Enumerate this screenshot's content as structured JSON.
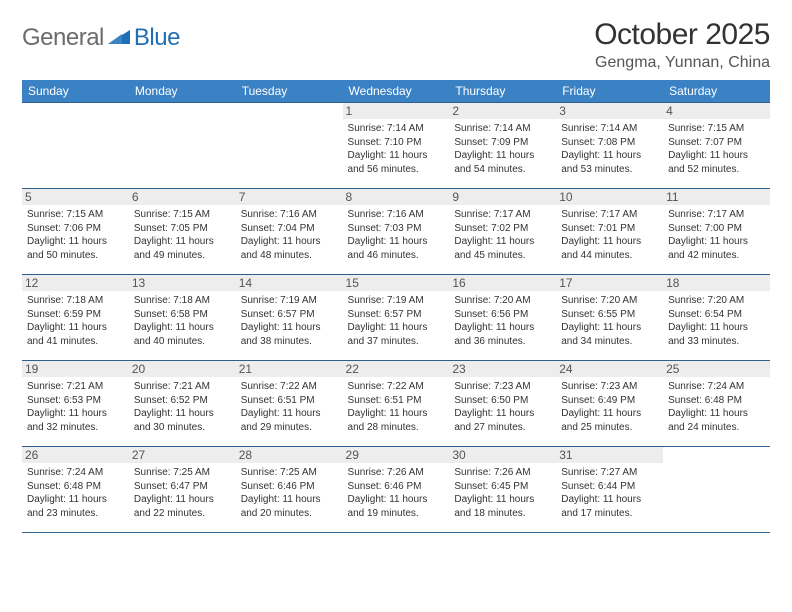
{
  "brand": {
    "general": "General",
    "blue": "Blue"
  },
  "title": "October 2025",
  "location": "Gengma, Yunnan, China",
  "colors": {
    "header_bg": "#3b82c4",
    "header_text": "#ffffff",
    "row_border": "#2f5f8f",
    "daynum_bg": "#ededed",
    "daynum_text": "#555555",
    "body_text": "#333333",
    "logo_gray": "#6b6b6b",
    "logo_blue": "#1f6fb2"
  },
  "days_of_week": [
    "Sunday",
    "Monday",
    "Tuesday",
    "Wednesday",
    "Thursday",
    "Friday",
    "Saturday"
  ],
  "weeks": [
    [
      null,
      null,
      null,
      {
        "n": "1",
        "sr": "Sunrise: 7:14 AM",
        "ss": "Sunset: 7:10 PM",
        "dl1": "Daylight: 11 hours",
        "dl2": "and 56 minutes."
      },
      {
        "n": "2",
        "sr": "Sunrise: 7:14 AM",
        "ss": "Sunset: 7:09 PM",
        "dl1": "Daylight: 11 hours",
        "dl2": "and 54 minutes."
      },
      {
        "n": "3",
        "sr": "Sunrise: 7:14 AM",
        "ss": "Sunset: 7:08 PM",
        "dl1": "Daylight: 11 hours",
        "dl2": "and 53 minutes."
      },
      {
        "n": "4",
        "sr": "Sunrise: 7:15 AM",
        "ss": "Sunset: 7:07 PM",
        "dl1": "Daylight: 11 hours",
        "dl2": "and 52 minutes."
      }
    ],
    [
      {
        "n": "5",
        "sr": "Sunrise: 7:15 AM",
        "ss": "Sunset: 7:06 PM",
        "dl1": "Daylight: 11 hours",
        "dl2": "and 50 minutes."
      },
      {
        "n": "6",
        "sr": "Sunrise: 7:15 AM",
        "ss": "Sunset: 7:05 PM",
        "dl1": "Daylight: 11 hours",
        "dl2": "and 49 minutes."
      },
      {
        "n": "7",
        "sr": "Sunrise: 7:16 AM",
        "ss": "Sunset: 7:04 PM",
        "dl1": "Daylight: 11 hours",
        "dl2": "and 48 minutes."
      },
      {
        "n": "8",
        "sr": "Sunrise: 7:16 AM",
        "ss": "Sunset: 7:03 PM",
        "dl1": "Daylight: 11 hours",
        "dl2": "and 46 minutes."
      },
      {
        "n": "9",
        "sr": "Sunrise: 7:17 AM",
        "ss": "Sunset: 7:02 PM",
        "dl1": "Daylight: 11 hours",
        "dl2": "and 45 minutes."
      },
      {
        "n": "10",
        "sr": "Sunrise: 7:17 AM",
        "ss": "Sunset: 7:01 PM",
        "dl1": "Daylight: 11 hours",
        "dl2": "and 44 minutes."
      },
      {
        "n": "11",
        "sr": "Sunrise: 7:17 AM",
        "ss": "Sunset: 7:00 PM",
        "dl1": "Daylight: 11 hours",
        "dl2": "and 42 minutes."
      }
    ],
    [
      {
        "n": "12",
        "sr": "Sunrise: 7:18 AM",
        "ss": "Sunset: 6:59 PM",
        "dl1": "Daylight: 11 hours",
        "dl2": "and 41 minutes."
      },
      {
        "n": "13",
        "sr": "Sunrise: 7:18 AM",
        "ss": "Sunset: 6:58 PM",
        "dl1": "Daylight: 11 hours",
        "dl2": "and 40 minutes."
      },
      {
        "n": "14",
        "sr": "Sunrise: 7:19 AM",
        "ss": "Sunset: 6:57 PM",
        "dl1": "Daylight: 11 hours",
        "dl2": "and 38 minutes."
      },
      {
        "n": "15",
        "sr": "Sunrise: 7:19 AM",
        "ss": "Sunset: 6:57 PM",
        "dl1": "Daylight: 11 hours",
        "dl2": "and 37 minutes."
      },
      {
        "n": "16",
        "sr": "Sunrise: 7:20 AM",
        "ss": "Sunset: 6:56 PM",
        "dl1": "Daylight: 11 hours",
        "dl2": "and 36 minutes."
      },
      {
        "n": "17",
        "sr": "Sunrise: 7:20 AM",
        "ss": "Sunset: 6:55 PM",
        "dl1": "Daylight: 11 hours",
        "dl2": "and 34 minutes."
      },
      {
        "n": "18",
        "sr": "Sunrise: 7:20 AM",
        "ss": "Sunset: 6:54 PM",
        "dl1": "Daylight: 11 hours",
        "dl2": "and 33 minutes."
      }
    ],
    [
      {
        "n": "19",
        "sr": "Sunrise: 7:21 AM",
        "ss": "Sunset: 6:53 PM",
        "dl1": "Daylight: 11 hours",
        "dl2": "and 32 minutes."
      },
      {
        "n": "20",
        "sr": "Sunrise: 7:21 AM",
        "ss": "Sunset: 6:52 PM",
        "dl1": "Daylight: 11 hours",
        "dl2": "and 30 minutes."
      },
      {
        "n": "21",
        "sr": "Sunrise: 7:22 AM",
        "ss": "Sunset: 6:51 PM",
        "dl1": "Daylight: 11 hours",
        "dl2": "and 29 minutes."
      },
      {
        "n": "22",
        "sr": "Sunrise: 7:22 AM",
        "ss": "Sunset: 6:51 PM",
        "dl1": "Daylight: 11 hours",
        "dl2": "and 28 minutes."
      },
      {
        "n": "23",
        "sr": "Sunrise: 7:23 AM",
        "ss": "Sunset: 6:50 PM",
        "dl1": "Daylight: 11 hours",
        "dl2": "and 27 minutes."
      },
      {
        "n": "24",
        "sr": "Sunrise: 7:23 AM",
        "ss": "Sunset: 6:49 PM",
        "dl1": "Daylight: 11 hours",
        "dl2": "and 25 minutes."
      },
      {
        "n": "25",
        "sr": "Sunrise: 7:24 AM",
        "ss": "Sunset: 6:48 PM",
        "dl1": "Daylight: 11 hours",
        "dl2": "and 24 minutes."
      }
    ],
    [
      {
        "n": "26",
        "sr": "Sunrise: 7:24 AM",
        "ss": "Sunset: 6:48 PM",
        "dl1": "Daylight: 11 hours",
        "dl2": "and 23 minutes."
      },
      {
        "n": "27",
        "sr": "Sunrise: 7:25 AM",
        "ss": "Sunset: 6:47 PM",
        "dl1": "Daylight: 11 hours",
        "dl2": "and 22 minutes."
      },
      {
        "n": "28",
        "sr": "Sunrise: 7:25 AM",
        "ss": "Sunset: 6:46 PM",
        "dl1": "Daylight: 11 hours",
        "dl2": "and 20 minutes."
      },
      {
        "n": "29",
        "sr": "Sunrise: 7:26 AM",
        "ss": "Sunset: 6:46 PM",
        "dl1": "Daylight: 11 hours",
        "dl2": "and 19 minutes."
      },
      {
        "n": "30",
        "sr": "Sunrise: 7:26 AM",
        "ss": "Sunset: 6:45 PM",
        "dl1": "Daylight: 11 hours",
        "dl2": "and 18 minutes."
      },
      {
        "n": "31",
        "sr": "Sunrise: 7:27 AM",
        "ss": "Sunset: 6:44 PM",
        "dl1": "Daylight: 11 hours",
        "dl2": "and 17 minutes."
      },
      null
    ]
  ]
}
